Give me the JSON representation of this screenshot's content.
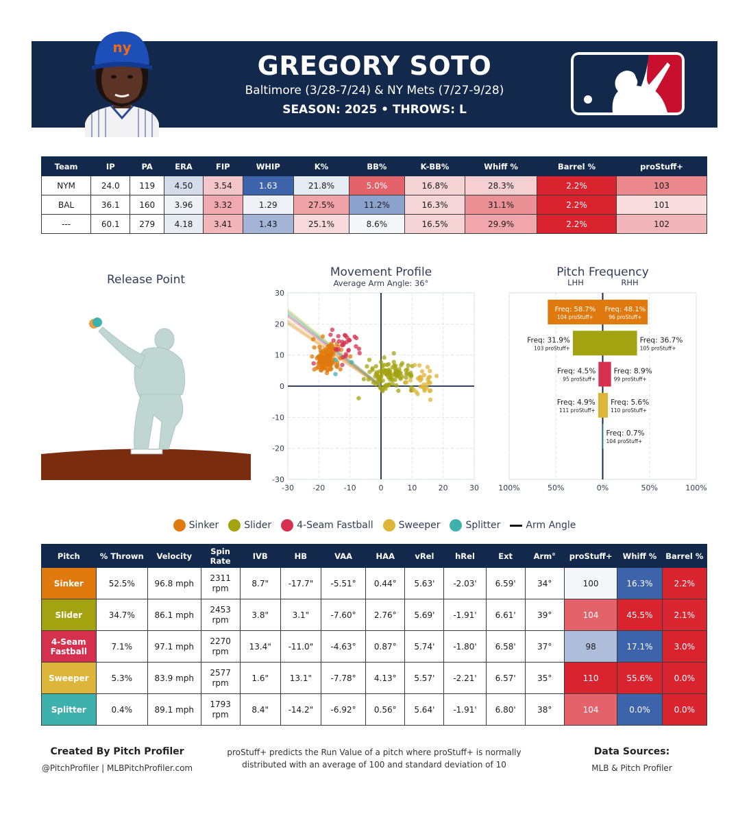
{
  "header": {
    "name": "GREGORY SOTO",
    "teams": "Baltimore (3/28-7/24) & NY Mets (7/27-9/28)",
    "season_line": "SEASON: 2025 • THROWS: L"
  },
  "colors": {
    "navy": "#13294b",
    "mlb_red": "#c8102e",
    "Sinker": "#e07a0e",
    "Slider": "#a3a312",
    "4-Seam Fastball": "#d6304f",
    "Sweeper": "#ddb53a",
    "Splitter": "#3fb1ad"
  },
  "team_table": {
    "columns": [
      "Team",
      "IP",
      "PA",
      "ERA",
      "FIP",
      "WHIP",
      "K%",
      "BB%",
      "K-BB%",
      "Whiff %",
      "Barrel %",
      "proStuff+"
    ],
    "rows": [
      {
        "cells": [
          "NYM",
          "24.0",
          "119",
          "4.50",
          "3.54",
          "1.63",
          "21.8%",
          "5.0%",
          "16.8%",
          "28.3%",
          "2.2%",
          "103"
        ],
        "colors": [
          "#ffffff",
          "#ffffff",
          "#ffffff",
          "#d4dcea",
          "#f4c6c9",
          "#3d64ab",
          "#e6ecf4",
          "#e4636b",
          "#f6d3d5",
          "#f5cfd2",
          "#d9232e",
          "#ea888d"
        ]
      },
      {
        "cells": [
          "BAL",
          "36.1",
          "160",
          "3.96",
          "3.32",
          "1.29",
          "27.5%",
          "11.2%",
          "16.3%",
          "31.1%",
          "2.2%",
          "101"
        ],
        "colors": [
          "#ffffff",
          "#ffffff",
          "#ffffff",
          "#eef1f6",
          "#f0a9ae",
          "#eef1f6",
          "#f0a4a8",
          "#8ba2cc",
          "#f6d5d7",
          "#eb9196",
          "#d9232e",
          "#f9dcde"
        ]
      },
      {
        "cells": [
          "---",
          "60.1",
          "279",
          "4.18",
          "3.41",
          "1.43",
          "25.1%",
          "8.6%",
          "16.5%",
          "29.9%",
          "2.2%",
          "102"
        ],
        "colors": [
          "#ffffff",
          "#ffffff",
          "#ffffff",
          "#e7ecf4",
          "#f2b6ba",
          "#a3b4d6",
          "#f8dadc",
          "#f4f6f9",
          "#f6d3d5",
          "#f0a6aa",
          "#d9232e",
          "#f2b5b9"
        ]
      }
    ]
  },
  "release_point": {
    "title": "Release Point"
  },
  "legend": {
    "items": [
      "Sinker",
      "Slider",
      "4-Seam Fastball",
      "Sweeper",
      "Splitter"
    ],
    "arm_angle": "Arm Angle"
  },
  "pitch_table": {
    "columns": [
      "Pitch",
      "% Thrown",
      "Velocity",
      "Spin Rate",
      "IVB",
      "HB",
      "VAA",
      "HAA",
      "vRel",
      "hRel",
      "Ext",
      "Arm°",
      "proStuff+",
      "Whiff %",
      "Barrel %"
    ],
    "rows": [
      {
        "pitch": "Sinker",
        "cells": [
          "52.5%",
          "96.8 mph",
          "2311 rpm",
          "8.7\"",
          "-17.7\"",
          "-5.51°",
          "0.44°",
          "5.63'",
          "-2.03'",
          "6.59'",
          "34°",
          "100",
          "16.3%",
          "2.2%"
        ],
        "stuff_color": "#f4f6f9",
        "whiff_color": "#3d64ab",
        "barrel_color": "#d9232e"
      },
      {
        "pitch": "Slider",
        "cells": [
          "34.7%",
          "86.1 mph",
          "2453 rpm",
          "3.8\"",
          "3.1\"",
          "-7.60°",
          "2.76°",
          "5.69'",
          "-1.91'",
          "6.61'",
          "39°",
          "104",
          "45.5%",
          "2.1%"
        ],
        "stuff_color": "#e4636b",
        "whiff_color": "#d9232e",
        "barrel_color": "#da2631"
      },
      {
        "pitch": "4-Seam Fastball",
        "cells": [
          "7.1%",
          "97.1 mph",
          "2270 rpm",
          "13.4\"",
          "-11.0\"",
          "-4.63°",
          "0.87°",
          "5.74'",
          "-1.80'",
          "6.58'",
          "37°",
          "98",
          "17.1%",
          "3.0%"
        ],
        "stuff_color": "#aebdd9",
        "whiff_color": "#3d64ab",
        "barrel_color": "#d9232e"
      },
      {
        "pitch": "Sweeper",
        "cells": [
          "5.3%",
          "83.9 mph",
          "2577 rpm",
          "1.6\"",
          "13.1\"",
          "-7.78°",
          "4.13°",
          "5.57'",
          "-2.21'",
          "6.57'",
          "35°",
          "110",
          "55.6%",
          "0.0%"
        ],
        "stuff_color": "#d9232e",
        "whiff_color": "#d9232e",
        "barrel_color": "#d9232e"
      },
      {
        "pitch": "Splitter",
        "cells": [
          "0.4%",
          "89.1 mph",
          "1793 rpm",
          "8.4\"",
          "-14.2\"",
          "-6.92°",
          "0.56°",
          "5.64'",
          "-1.91'",
          "6.80'",
          "38°",
          "104",
          "0.0%",
          "0.0%"
        ],
        "stuff_color": "#e4636b",
        "whiff_color": "#3d64ab",
        "barrel_color": "#d9232e"
      }
    ]
  },
  "footer": {
    "created_by": "Created By Pitch Profiler",
    "handles": "@PitchProfiler | MLBPitchProfiler.com",
    "note_line1": "proStuff+ predicts the Run Value of a pitch where proStuff+ is normally",
    "note_line2": "distributed with an average of 100 and standard deviation of 10",
    "sources_title": "Data Sources:",
    "sources": "MLB & Pitch Profiler"
  },
  "chart_data": [
    {
      "type": "scatter",
      "title": "Movement Profile",
      "subtitle": "Average Arm Angle: 36°",
      "xlim": [
        -30,
        30
      ],
      "ylim": [
        -30,
        30
      ],
      "x_ticks": [
        -30,
        -20,
        -10,
        0,
        10,
        20,
        30
      ],
      "y_ticks": [
        30,
        20,
        10,
        0,
        -10,
        -20,
        -30
      ],
      "series": [
        {
          "name": "Sinker",
          "center": [
            -17.7,
            8.7
          ],
          "spread": [
            2.0,
            2.2
          ],
          "count": 150
        },
        {
          "name": "Slider",
          "center": [
            3.1,
            3.8
          ],
          "spread": [
            3.8,
            2.2
          ],
          "count": 110
        },
        {
          "name": "4-Seam Fastball",
          "center": [
            -11.0,
            13.4
          ],
          "spread": [
            2.5,
            2.5
          ],
          "count": 30
        },
        {
          "name": "Sweeper",
          "center": [
            13.1,
            1.6
          ],
          "spread": [
            2.5,
            2.6
          ],
          "count": 35
        },
        {
          "name": "Splitter",
          "center": [
            -14.2,
            8.4
          ],
          "spread": [
            1.5,
            4.0
          ],
          "count": 3
        }
      ],
      "arm_angles": [
        34,
        39,
        37,
        35,
        38
      ]
    },
    {
      "type": "bar",
      "title": "Pitch Frequency",
      "left_label": "LHH",
      "right_label": "RHH",
      "x_ticks": [
        "100%",
        "50%",
        "0%",
        "50%",
        "100%"
      ],
      "categories": [
        "Sinker",
        "Slider",
        "4-Seam Fastball",
        "Sweeper",
        "Splitter"
      ],
      "series": [
        {
          "name": "LHH",
          "values": [
            58.7,
            31.9,
            4.5,
            4.9,
            0.0
          ],
          "labels": [
            "Freq: 58.7%",
            "Freq: 31.9%",
            "Freq: 4.5%",
            "Freq: 4.9%",
            ""
          ],
          "stuff": [
            "104 proStuff+",
            "103 proStuff+",
            "95 proStuff+",
            "111 proStuff+",
            ""
          ]
        },
        {
          "name": "RHH",
          "values": [
            48.1,
            36.7,
            8.9,
            5.6,
            0.7
          ],
          "labels": [
            "Freq: 48.1%",
            "Freq: 36.7%",
            "Freq: 8.9%",
            "Freq: 5.6%",
            "Freq: 0.7%"
          ],
          "stuff": [
            "96 proStuff+",
            "105 proStuff+",
            "99 proStuff+",
            "110 proStuff+",
            "104 proStuff+"
          ]
        }
      ]
    }
  ]
}
